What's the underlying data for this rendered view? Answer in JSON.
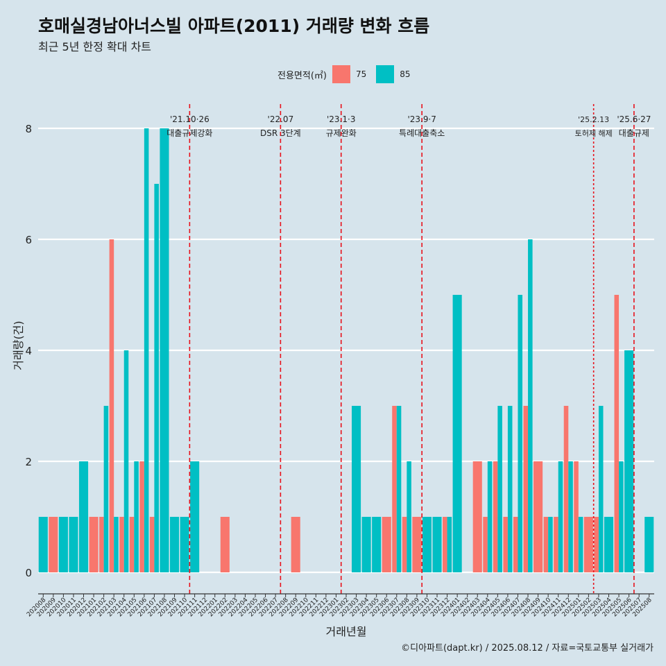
{
  "header": {
    "title": "호매실경남아너스빌 아파트(2011) 거래량 변화 흐름",
    "subtitle": "최근 5년 한정 확대 차트"
  },
  "legend": {
    "title": "전용면적(㎡)",
    "items": [
      {
        "label": "75",
        "color": "#f8766d"
      },
      {
        "label": "85",
        "color": "#00bfc4"
      }
    ]
  },
  "caption": "©디아파트(dapt.kr) / 2025.08.12 / 자료=국토교통부 실거래가",
  "chart_data": {
    "type": "bar",
    "title": "호매실경남아너스빌 아파트(2011) 거래량 변화 흐름",
    "xlabel": "거래년월",
    "ylabel": "거래량(건)",
    "ylim": [
      0,
      8.5
    ],
    "yticks": [
      0,
      2,
      4,
      6,
      8
    ],
    "categories": [
      "202008",
      "202009",
      "202010",
      "202011",
      "202012",
      "202101",
      "202102",
      "202103",
      "202104",
      "202105",
      "202106",
      "202107",
      "202108",
      "202109",
      "202110",
      "202111",
      "202112",
      "202201",
      "202202",
      "202203",
      "202204",
      "202205",
      "202206",
      "202207",
      "202208",
      "202209",
      "202210",
      "202211",
      "202212",
      "202301",
      "202302",
      "202303",
      "202304",
      "202305",
      "202306",
      "202307",
      "202308",
      "202309",
      "202310",
      "202311",
      "202312",
      "202401",
      "202402",
      "202403",
      "202404",
      "202405",
      "202406",
      "202407",
      "202408",
      "202409",
      "202410",
      "202411",
      "202412",
      "202501",
      "202502",
      "202503",
      "202504",
      "202505",
      "202506",
      "202507",
      "202508"
    ],
    "series": [
      {
        "name": "75",
        "color": "#f8766d",
        "values": [
          0,
          1,
          0,
          0,
          0,
          1,
          1,
          6,
          1,
          1,
          2,
          1,
          0,
          0,
          0,
          0,
          0,
          0,
          1,
          0,
          0,
          0,
          0,
          0,
          0,
          1,
          0,
          0,
          0,
          0,
          0,
          0,
          0,
          0,
          1,
          3,
          1,
          1,
          0,
          0,
          1,
          0,
          0,
          2,
          1,
          2,
          1,
          1,
          3,
          2,
          1,
          1,
          3,
          2,
          1,
          1,
          0,
          5,
          0,
          0,
          0
        ]
      },
      {
        "name": "85",
        "color": "#00bfc4",
        "values": [
          1,
          0,
          1,
          1,
          2,
          0,
          3,
          1,
          4,
          2,
          8,
          7,
          8,
          1,
          1,
          2,
          0,
          0,
          0,
          0,
          0,
          0,
          0,
          0,
          0,
          0,
          0,
          0,
          0,
          0,
          0,
          3,
          1,
          1,
          0,
          3,
          2,
          0,
          1,
          1,
          1,
          5,
          0,
          0,
          2,
          3,
          3,
          5,
          6,
          0,
          1,
          2,
          2,
          1,
          0,
          3,
          1,
          2,
          4,
          0,
          1
        ]
      }
    ],
    "annotations": [
      {
        "index": 14.5,
        "date": "'21.10·26",
        "label": "대출규제강화",
        "style": "dashed"
      },
      {
        "index": 23.5,
        "date": "'22.07",
        "label": "DSR 3단계",
        "style": "dashed"
      },
      {
        "index": 29.5,
        "date": "'23.1·3",
        "label": "규제완화",
        "style": "dashed"
      },
      {
        "index": 37.5,
        "date": "'23.9·7",
        "label": "특례대출축소",
        "style": "dashed"
      },
      {
        "index": 54.5,
        "date": "'25.2.13",
        "label": "토허제 해제",
        "style": "dotted"
      },
      {
        "index": 58.5,
        "date": "'25.6·27",
        "label": "대출규제",
        "style": "dashed"
      }
    ]
  }
}
